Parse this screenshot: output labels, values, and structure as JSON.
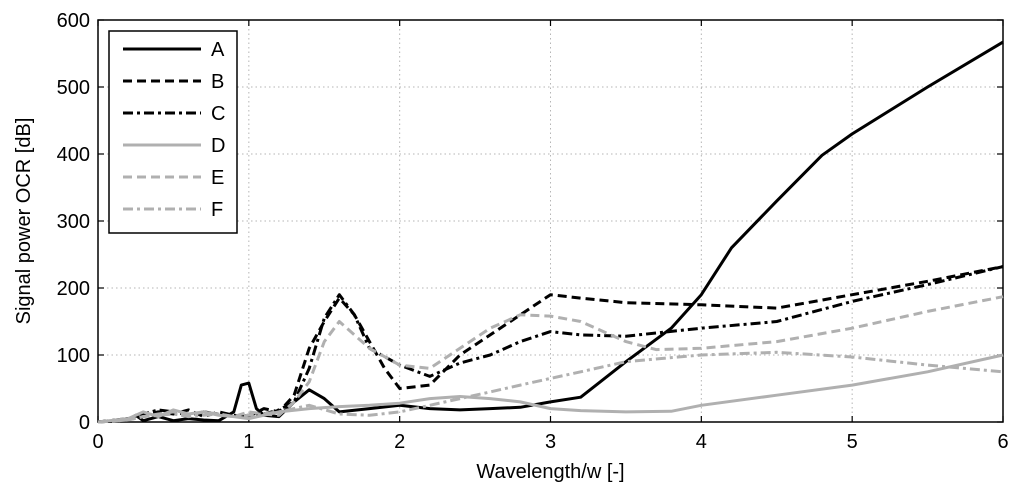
{
  "chart_data": {
    "type": "line",
    "title": "",
    "xlabel": "Wavelength/w [-]",
    "ylabel": "Signal power OCR [dB]",
    "xlim": [
      0,
      6
    ],
    "ylim": [
      0,
      600
    ],
    "xticks": [
      0,
      1,
      2,
      3,
      4,
      5,
      6
    ],
    "yticks": [
      0,
      100,
      200,
      300,
      400,
      500,
      600
    ],
    "xtick_labels": [
      "0",
      "1",
      "2",
      "3",
      "4",
      "5",
      "6"
    ],
    "ytick_labels": [
      "0",
      "100",
      "200",
      "300",
      "400",
      "500",
      "600"
    ],
    "grid": true,
    "legend_position": "top-left",
    "series": [
      {
        "name": "A",
        "color": "#000000",
        "dash": "solid",
        "x": [
          0,
          0.2,
          0.25,
          0.3,
          0.4,
          0.5,
          0.6,
          0.7,
          0.8,
          0.9,
          0.95,
          1.0,
          1.05,
          1.1,
          1.2,
          1.3,
          1.4,
          1.5,
          1.6,
          1.8,
          2.0,
          2.2,
          2.4,
          2.6,
          2.8,
          3.0,
          3.2,
          3.5,
          3.8,
          4.0,
          4.2,
          4.5,
          4.8,
          5.0,
          5.5,
          6.0
        ],
        "y": [
          0,
          3,
          10,
          2,
          8,
          2,
          5,
          3,
          2,
          15,
          55,
          58,
          20,
          10,
          8,
          30,
          48,
          35,
          15,
          20,
          25,
          20,
          18,
          20,
          22,
          30,
          37,
          90,
          140,
          190,
          260,
          330,
          398,
          430,
          500,
          567
        ]
      },
      {
        "name": "B",
        "color": "#000000",
        "dash": "dash",
        "x": [
          0,
          0.2,
          0.3,
          0.4,
          0.5,
          0.6,
          0.7,
          0.8,
          0.9,
          1.0,
          1.1,
          1.2,
          1.3,
          1.4,
          1.5,
          1.6,
          1.7,
          1.8,
          1.9,
          2.0,
          2.2,
          2.4,
          2.6,
          2.8,
          3.0,
          3.2,
          3.5,
          4.0,
          4.5,
          5.0,
          5.5,
          6.0
        ],
        "y": [
          0,
          5,
          10,
          15,
          12,
          18,
          8,
          15,
          10,
          8,
          20,
          15,
          40,
          110,
          150,
          185,
          160,
          120,
          80,
          50,
          55,
          100,
          130,
          160,
          190,
          185,
          178,
          175,
          170,
          190,
          210,
          232
        ]
      },
      {
        "name": "C",
        "color": "#000000",
        "dash": "dashdot",
        "x": [
          0,
          0.2,
          0.3,
          0.4,
          0.5,
          0.6,
          0.7,
          0.8,
          0.9,
          1.0,
          1.1,
          1.2,
          1.3,
          1.4,
          1.5,
          1.6,
          1.7,
          1.8,
          2.0,
          2.2,
          2.4,
          2.6,
          2.8,
          3.0,
          3.2,
          3.5,
          4.0,
          4.5,
          5.0,
          5.5,
          6.0
        ],
        "y": [
          0,
          5,
          12,
          18,
          15,
          10,
          15,
          12,
          8,
          10,
          12,
          18,
          30,
          80,
          155,
          190,
          160,
          110,
          85,
          68,
          88,
          100,
          120,
          135,
          130,
          128,
          140,
          150,
          180,
          205,
          232
        ]
      },
      {
        "name": "D",
        "color": "#b0b0b0",
        "dash": "solid",
        "x": [
          0,
          0.2,
          0.3,
          0.4,
          0.5,
          0.6,
          0.7,
          0.8,
          0.9,
          1.0,
          1.2,
          1.4,
          1.6,
          1.8,
          2.0,
          2.2,
          2.4,
          2.6,
          2.8,
          3.0,
          3.2,
          3.5,
          3.8,
          4.0,
          4.5,
          5.0,
          5.5,
          6.0
        ],
        "y": [
          0,
          5,
          15,
          8,
          18,
          12,
          15,
          10,
          8,
          5,
          15,
          20,
          23,
          25,
          28,
          35,
          38,
          35,
          30,
          20,
          17,
          15,
          16,
          25,
          40,
          55,
          75,
          100
        ]
      },
      {
        "name": "E",
        "color": "#b0b0b0",
        "dash": "dash",
        "x": [
          0,
          0.2,
          0.3,
          0.4,
          0.5,
          0.6,
          0.7,
          0.8,
          0.9,
          1.0,
          1.1,
          1.2,
          1.3,
          1.4,
          1.5,
          1.6,
          1.7,
          1.8,
          2.0,
          2.2,
          2.4,
          2.6,
          2.8,
          3.0,
          3.2,
          3.5,
          3.7,
          4.0,
          4.5,
          5.0,
          5.5,
          6.0
        ],
        "y": [
          0,
          3,
          8,
          12,
          15,
          10,
          15,
          12,
          8,
          15,
          12,
          10,
          30,
          60,
          120,
          150,
          130,
          110,
          85,
          80,
          110,
          140,
          160,
          158,
          150,
          120,
          108,
          110,
          120,
          140,
          165,
          187
        ]
      },
      {
        "name": "F",
        "color": "#b0b0b0",
        "dash": "dashdot",
        "x": [
          0,
          0.2,
          0.3,
          0.4,
          0.5,
          0.6,
          0.7,
          0.8,
          0.9,
          1.0,
          1.2,
          1.4,
          1.6,
          1.8,
          2.0,
          2.2,
          2.4,
          2.6,
          2.8,
          3.0,
          3.2,
          3.5,
          4.0,
          4.5,
          5.0,
          5.5,
          6.0
        ],
        "y": [
          0,
          3,
          8,
          10,
          12,
          8,
          10,
          12,
          8,
          10,
          15,
          25,
          12,
          10,
          15,
          25,
          35,
          45,
          55,
          65,
          75,
          90,
          100,
          104,
          97,
          85,
          75
        ]
      }
    ]
  }
}
